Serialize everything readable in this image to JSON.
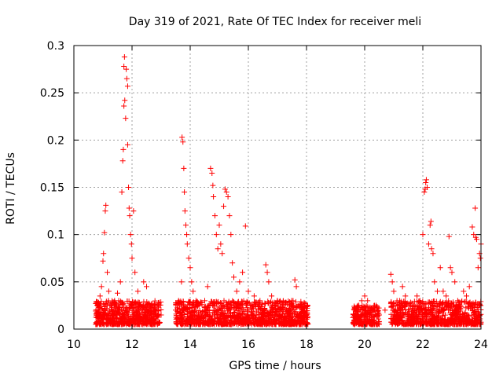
{
  "chart_data": {
    "type": "scatter",
    "title": "Day 319 of 2021, Rate Of TEC Index for receiver meli",
    "xlabel": "GPS time / hours",
    "ylabel": "ROTI / TECUs",
    "xlim": [
      10,
      24
    ],
    "ylim": [
      0,
      0.3
    ],
    "x_ticks": [
      10,
      12,
      14,
      16,
      18,
      20,
      22,
      24
    ],
    "y_ticks": [
      0,
      0.05,
      0.1,
      0.15,
      0.2,
      0.25,
      0.3
    ],
    "x_tick_labels": [
      "10",
      "12",
      "14",
      "16",
      "18",
      "20",
      "22",
      "24"
    ],
    "y_tick_labels": [
      "0",
      "0.05",
      "0.1",
      "0.15",
      "0.2",
      "0.25",
      "0.3"
    ],
    "grid": true,
    "marker": "+",
    "color": "#ff0000",
    "series": [
      {
        "name": "ROTI",
        "points": [
          [
            10.8,
            0.012
          ],
          [
            10.85,
            0.028
          ],
          [
            10.9,
            0.035
          ],
          [
            10.95,
            0.045
          ],
          [
            11.0,
            0.072
          ],
          [
            11.02,
            0.08
          ],
          [
            11.05,
            0.102
          ],
          [
            11.08,
            0.125
          ],
          [
            11.1,
            0.131
          ],
          [
            11.15,
            0.06
          ],
          [
            11.2,
            0.04
          ],
          [
            11.3,
            0.02
          ],
          [
            11.4,
            0.03
          ],
          [
            11.5,
            0.038
          ],
          [
            11.6,
            0.05
          ],
          [
            11.65,
            0.145
          ],
          [
            11.68,
            0.178
          ],
          [
            11.7,
            0.19
          ],
          [
            11.72,
            0.236
          ],
          [
            11.75,
            0.242
          ],
          [
            11.72,
            0.278
          ],
          [
            11.74,
            0.288
          ],
          [
            11.8,
            0.275
          ],
          [
            11.82,
            0.265
          ],
          [
            11.85,
            0.257
          ],
          [
            11.78,
            0.223
          ],
          [
            11.85,
            0.195
          ],
          [
            11.88,
            0.15
          ],
          [
            11.9,
            0.128
          ],
          [
            11.92,
            0.12
          ],
          [
            11.95,
            0.1
          ],
          [
            11.98,
            0.09
          ],
          [
            12.0,
            0.075
          ],
          [
            12.05,
            0.125
          ],
          [
            12.1,
            0.06
          ],
          [
            12.2,
            0.04
          ],
          [
            12.3,
            0.025
          ],
          [
            12.4,
            0.05
          ],
          [
            12.5,
            0.045
          ],
          [
            12.6,
            0.02
          ],
          [
            12.7,
            0.015
          ],
          [
            12.8,
            0.025
          ],
          [
            12.9,
            0.02
          ],
          [
            13.0,
            0.015
          ],
          [
            13.5,
            0.02
          ],
          [
            13.6,
            0.03
          ],
          [
            13.7,
            0.05
          ],
          [
            13.72,
            0.203
          ],
          [
            13.75,
            0.198
          ],
          [
            13.78,
            0.17
          ],
          [
            13.8,
            0.145
          ],
          [
            13.82,
            0.125
          ],
          [
            13.85,
            0.11
          ],
          [
            13.88,
            0.1
          ],
          [
            13.9,
            0.09
          ],
          [
            13.95,
            0.075
          ],
          [
            14.0,
            0.065
          ],
          [
            14.05,
            0.05
          ],
          [
            14.1,
            0.04
          ],
          [
            14.2,
            0.03
          ],
          [
            14.3,
            0.025
          ],
          [
            14.4,
            0.028
          ],
          [
            14.5,
            0.03
          ],
          [
            14.6,
            0.045
          ],
          [
            14.7,
            0.17
          ],
          [
            14.75,
            0.165
          ],
          [
            14.78,
            0.152
          ],
          [
            14.8,
            0.14
          ],
          [
            14.85,
            0.12
          ],
          [
            14.9,
            0.1
          ],
          [
            14.95,
            0.085
          ],
          [
            15.0,
            0.11
          ],
          [
            15.05,
            0.09
          ],
          [
            15.1,
            0.08
          ],
          [
            15.15,
            0.13
          ],
          [
            15.2,
            0.148
          ],
          [
            15.25,
            0.145
          ],
          [
            15.3,
            0.14
          ],
          [
            15.35,
            0.12
          ],
          [
            15.4,
            0.1
          ],
          [
            15.45,
            0.07
          ],
          [
            15.5,
            0.055
          ],
          [
            15.6,
            0.04
          ],
          [
            15.7,
            0.05
          ],
          [
            15.8,
            0.06
          ],
          [
            15.9,
            0.109
          ],
          [
            16.0,
            0.04
          ],
          [
            16.2,
            0.035
          ],
          [
            16.4,
            0.03
          ],
          [
            16.6,
            0.068
          ],
          [
            16.65,
            0.06
          ],
          [
            16.7,
            0.05
          ],
          [
            16.8,
            0.035
          ],
          [
            17.0,
            0.03
          ],
          [
            17.2,
            0.025
          ],
          [
            17.4,
            0.02
          ],
          [
            17.6,
            0.052
          ],
          [
            17.65,
            0.045
          ],
          [
            17.8,
            0.025
          ],
          [
            18.0,
            0.015
          ],
          [
            19.6,
            0.012
          ],
          [
            19.7,
            0.02
          ],
          [
            19.8,
            0.025
          ],
          [
            19.9,
            0.03
          ],
          [
            20.0,
            0.035
          ],
          [
            20.1,
            0.03
          ],
          [
            20.3,
            0.02
          ],
          [
            20.5,
            0.015
          ],
          [
            20.7,
            0.02
          ],
          [
            20.9,
            0.058
          ],
          [
            20.95,
            0.05
          ],
          [
            21.0,
            0.04
          ],
          [
            21.2,
            0.03
          ],
          [
            21.3,
            0.045
          ],
          [
            21.4,
            0.035
          ],
          [
            21.5,
            0.02
          ],
          [
            21.7,
            0.025
          ],
          [
            21.8,
            0.035
          ],
          [
            21.9,
            0.03
          ],
          [
            22.0,
            0.1
          ],
          [
            22.05,
            0.145
          ],
          [
            22.08,
            0.148
          ],
          [
            22.1,
            0.155
          ],
          [
            22.12,
            0.158
          ],
          [
            22.15,
            0.15
          ],
          [
            22.2,
            0.09
          ],
          [
            22.25,
            0.11
          ],
          [
            22.28,
            0.114
          ],
          [
            22.3,
            0.085
          ],
          [
            22.35,
            0.08
          ],
          [
            22.4,
            0.05
          ],
          [
            22.5,
            0.04
          ],
          [
            22.6,
            0.065
          ],
          [
            22.7,
            0.04
          ],
          [
            22.8,
            0.035
          ],
          [
            22.9,
            0.098
          ],
          [
            22.95,
            0.065
          ],
          [
            23.0,
            0.06
          ],
          [
            23.1,
            0.05
          ],
          [
            23.2,
            0.03
          ],
          [
            23.4,
            0.04
          ],
          [
            23.5,
            0.035
          ],
          [
            23.6,
            0.045
          ],
          [
            23.7,
            0.108
          ],
          [
            23.75,
            0.1
          ],
          [
            23.8,
            0.128
          ],
          [
            23.82,
            0.097
          ],
          [
            23.85,
            0.095
          ],
          [
            23.9,
            0.065
          ],
          [
            23.95,
            0.08
          ],
          [
            24.0,
            0.09
          ],
          [
            23.98,
            0.075
          ]
        ],
        "dense_bands": [
          {
            "x_start": 10.75,
            "x_end": 13.0,
            "y_min": 0.005,
            "y_max": 0.03
          },
          {
            "x_start": 13.5,
            "x_end": 18.05,
            "y_min": 0.005,
            "y_max": 0.03
          },
          {
            "x_start": 19.6,
            "x_end": 20.5,
            "y_min": 0.005,
            "y_max": 0.025
          },
          {
            "x_start": 20.9,
            "x_end": 24.0,
            "y_min": 0.005,
            "y_max": 0.03
          }
        ]
      }
    ]
  }
}
